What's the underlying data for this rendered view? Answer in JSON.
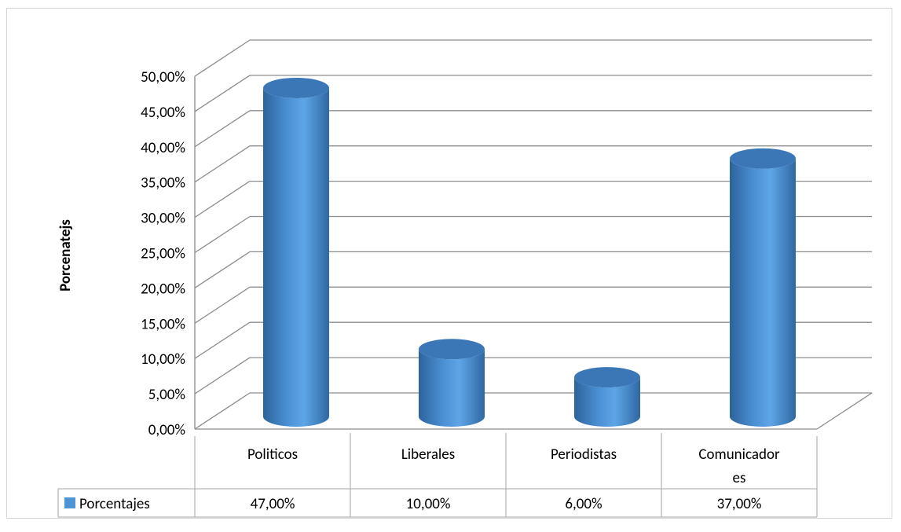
{
  "chart_data": {
    "type": "bar",
    "title": "",
    "ylabel": "Porcenatejs",
    "xlabel": "",
    "ylim": [
      0,
      50
    ],
    "y_ticks": [
      "0,00%",
      "5,00%",
      "10,00%",
      "15,00%",
      "20,00%",
      "25,00%",
      "30,00%",
      "35,00%",
      "40,00%",
      "45,00%",
      "50,00%"
    ],
    "categories": [
      "Politicos",
      "Liberales",
      "Periodistas",
      "Comunicador es"
    ],
    "category_lines": [
      [
        "Politicos"
      ],
      [
        "Liberales"
      ],
      [
        "Periodistas"
      ],
      [
        "Comunicador",
        "es"
      ]
    ],
    "series": [
      {
        "name": "Porcentajes",
        "values": [
          47,
          10,
          6,
          37
        ],
        "labels": [
          "47,00%",
          "10,00%",
          "6,00%",
          "37,00%"
        ]
      }
    ],
    "grid": true,
    "legend": "data-table",
    "colors": {
      "bar": "#4f94d6",
      "bar_dark": "#2a5d92",
      "bar_top": "#3b77b7",
      "grid": "#8c8c8c",
      "table": "#a6a6a6"
    }
  }
}
